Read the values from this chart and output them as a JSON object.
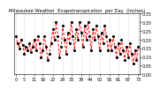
{
  "title": "Milwaukee Weather  Evapotranspiration  per Day  (Inches)",
  "line_color": "#FF0000",
  "dot_color": "#000000",
  "bg_color": "#FFFFFF",
  "grid_color": "#AAAAAA",
  "ylim": [
    0.0,
    0.35
  ],
  "yticks": [
    0.0,
    0.05,
    0.1,
    0.15,
    0.2,
    0.25,
    0.3,
    0.35
  ],
  "values": [
    0.22,
    0.18,
    0.15,
    0.2,
    0.17,
    0.12,
    0.16,
    0.14,
    0.18,
    0.13,
    0.16,
    0.2,
    0.14,
    0.22,
    0.18,
    0.1,
    0.14,
    0.22,
    0.16,
    0.08,
    0.12,
    0.18,
    0.26,
    0.2,
    0.3,
    0.22,
    0.1,
    0.16,
    0.28,
    0.2,
    0.12,
    0.24,
    0.18,
    0.3,
    0.22,
    0.14,
    0.26,
    0.2,
    0.3,
    0.24,
    0.16,
    0.28,
    0.2,
    0.3,
    0.22,
    0.14,
    0.26,
    0.2,
    0.28,
    0.22,
    0.14,
    0.24,
    0.18,
    0.28,
    0.22,
    0.14,
    0.2,
    0.14,
    0.22,
    0.16,
    0.1,
    0.18,
    0.12,
    0.2,
    0.14,
    0.08,
    0.16,
    0.1,
    0.18,
    0.12,
    0.06,
    0.14,
    0.08,
    0.16
  ],
  "num_xticks": 14,
  "xlabel_fontsize": 3.5,
  "ylabel_fontsize": 3.5,
  "title_fontsize": 3.8
}
